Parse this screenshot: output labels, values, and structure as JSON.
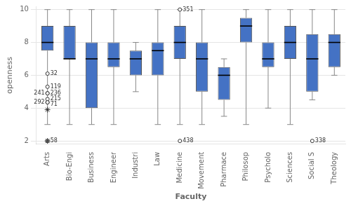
{
  "chart_data": {
    "type": "box",
    "xlabel": "Faculty",
    "ylabel": "openness",
    "ylim": [
      1.8,
      10.2
    ],
    "yticks": [
      2,
      4,
      6,
      8,
      10
    ],
    "grid": true,
    "color": "#4472C4",
    "categories": [
      "Arts",
      "Bio-Engi",
      "Business",
      "Engineer",
      "Industri",
      "Law",
      "Medicine",
      "Movement",
      "Pharmace",
      "Philosop",
      "Psycholo",
      "Sciences",
      "Social S",
      "Theology"
    ],
    "q1": [
      7.5,
      7.0,
      4.0,
      6.5,
      6.0,
      6.0,
      7.0,
      5.0,
      4.5,
      8.0,
      6.5,
      7.0,
      5.0,
      6.5
    ],
    "median": [
      8.0,
      7.0,
      7.0,
      7.0,
      7.0,
      7.5,
      8.0,
      7.0,
      6.0,
      9.0,
      7.0,
      8.0,
      7.0,
      8.0
    ],
    "q3": [
      9.0,
      9.0,
      8.0,
      8.0,
      7.5,
      8.0,
      9.0,
      8.0,
      6.5,
      9.5,
      8.0,
      9.0,
      8.5,
      8.5
    ],
    "whislo": [
      3.0,
      3.0,
      3.0,
      3.0,
      5.0,
      3.0,
      3.0,
      3.0,
      3.5,
      3.0,
      4.0,
      3.0,
      4.5,
      6.0
    ],
    "whishi": [
      10.0,
      10.0,
      10.0,
      10.0,
      8.0,
      10.0,
      10.0,
      10.0,
      7.0,
      10.0,
      10.0,
      10.0,
      10.0,
      10.0
    ],
    "outliers": [
      {
        "category": "Arts",
        "value": 6.1,
        "label": "32"
      },
      {
        "category": "Arts",
        "value": 5.3,
        "label": "119"
      },
      {
        "category": "Arts",
        "value": 4.9,
        "label": "236"
      },
      {
        "category": "Arts",
        "value": 4.9,
        "label": "241"
      },
      {
        "category": "Arts",
        "value": 4.55,
        "label": "215"
      },
      {
        "category": "Arts",
        "value": 4.35,
        "label": "292"
      },
      {
        "category": "Arts",
        "value": 4.35,
        "label": "71"
      },
      {
        "category": "Arts",
        "value": 2.0,
        "label": "58"
      },
      {
        "category": "Medicine",
        "value": 10.0,
        "label": "351"
      },
      {
        "category": "Medicine",
        "value": 2.0,
        "label": "438"
      },
      {
        "category": "Social S",
        "value": 2.0,
        "label": "338"
      }
    ],
    "stars": [
      {
        "category": "Arts",
        "value": 3.9
      },
      {
        "category": "Arts",
        "value": 2.0
      }
    ]
  }
}
